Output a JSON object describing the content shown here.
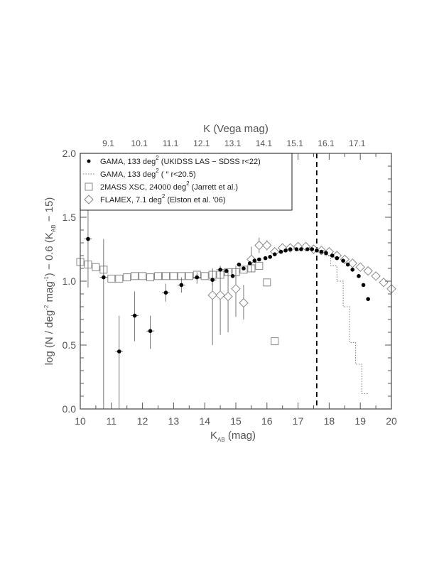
{
  "chart_data": {
    "type": "scatter",
    "xlabel": "K",
    "xlabel_sub": "AB",
    "xlabel_unit": "(mag)",
    "ylabel_parts": [
      "log (N / deg",
      "-2",
      " mag",
      "-1",
      ") − 0.6 (K",
      "AB",
      " − 15)"
    ],
    "top_xlabel": "K (Vega mag)",
    "xlim": [
      10,
      20
    ],
    "ylim": [
      0.0,
      2.0
    ],
    "x_ticks": [
      "10",
      "11",
      "12",
      "13",
      "14",
      "15",
      "16",
      "17",
      "18",
      "19",
      "20"
    ],
    "y_ticks": [
      "0.0",
      "0.5",
      "1.0",
      "1.5",
      "2.0"
    ],
    "top_ticks": {
      "positions_kab": [
        10.9,
        11.9,
        12.9,
        13.9,
        14.9,
        15.9,
        16.9,
        17.9,
        18.9
      ],
      "labels": [
        "9.1",
        "10.1",
        "11.1",
        "12.1",
        "13.1",
        "14.1",
        "15.1",
        "16.1",
        "17.1"
      ]
    },
    "vline_x": 17.6,
    "legend_position": "top-left",
    "legend": [
      {
        "marker": "filled-circle",
        "parts": [
          "GAMA, 133 deg",
          "2",
          " (UKIDSS LAS − SDSS r<22)"
        ]
      },
      {
        "marker": "dotted-line",
        "parts": [
          "GAMA, 133 deg",
          "2",
          " ( ″ r<20.5)"
        ]
      },
      {
        "marker": "open-square",
        "parts": [
          "2MASS XSC, 24000 deg",
          "2",
          " (Jarrett et al.)"
        ]
      },
      {
        "marker": "open-diamond",
        "parts": [
          "FLAMEX, 7.1 deg",
          "2",
          " (Elston et al. '06)"
        ]
      }
    ],
    "series": [
      {
        "name": "GAMA, 133 deg2 (UKIDSS LAS - SDSS r<22)",
        "marker": "filled-circle",
        "points": [
          {
            "x": 10.25,
            "y": 1.33,
            "ylo": 0.95,
            "yhi": 1.7
          },
          {
            "x": 10.75,
            "y": 1.03,
            "ylo": 0.0,
            "yhi": 1.33
          },
          {
            "x": 11.25,
            "y": 0.45,
            "ylo": 0.0,
            "yhi": 0.73
          },
          {
            "x": 11.75,
            "y": 0.73,
            "ylo": 0.53,
            "yhi": 0.92
          },
          {
            "x": 12.25,
            "y": 0.61,
            "ylo": 0.47,
            "yhi": 0.73
          },
          {
            "x": 12.75,
            "y": 0.91,
            "ylo": 0.84,
            "yhi": 0.98
          },
          {
            "x": 13.25,
            "y": 0.97,
            "ylo": 0.91,
            "yhi": 1.03
          },
          {
            "x": 13.75,
            "y": 1.03,
            "ylo": 0.98,
            "yhi": 1.07
          },
          {
            "x": 14.25,
            "y": 1.01,
            "ylo": 0.97,
            "yhi": 1.05
          },
          {
            "x": 14.5,
            "y": 1.09,
            "ylo": 1.05,
            "yhi": 1.12
          },
          {
            "x": 14.7,
            "y": 1.08
          },
          {
            "x": 14.9,
            "y": 1.04
          },
          {
            "x": 15.1,
            "y": 1.13
          },
          {
            "x": 15.25,
            "y": 1.1
          },
          {
            "x": 15.45,
            "y": 1.14
          },
          {
            "x": 15.6,
            "y": 1.16
          },
          {
            "x": 15.75,
            "y": 1.17
          },
          {
            "x": 15.95,
            "y": 1.18
          },
          {
            "x": 16.1,
            "y": 1.19
          },
          {
            "x": 16.25,
            "y": 1.21
          },
          {
            "x": 16.45,
            "y": 1.23
          },
          {
            "x": 16.6,
            "y": 1.24
          },
          {
            "x": 16.75,
            "y": 1.25
          },
          {
            "x": 16.95,
            "y": 1.25
          },
          {
            "x": 17.1,
            "y": 1.25
          },
          {
            "x": 17.3,
            "y": 1.25
          },
          {
            "x": 17.45,
            "y": 1.25
          },
          {
            "x": 17.6,
            "y": 1.24
          },
          {
            "x": 17.75,
            "y": 1.23
          },
          {
            "x": 17.9,
            "y": 1.22
          },
          {
            "x": 18.1,
            "y": 1.2
          },
          {
            "x": 18.25,
            "y": 1.18
          },
          {
            "x": 18.45,
            "y": 1.16
          },
          {
            "x": 18.6,
            "y": 1.13
          },
          {
            "x": 18.75,
            "y": 1.09
          },
          {
            "x": 18.95,
            "y": 1.04
          },
          {
            "x": 19.1,
            "y": 0.97
          },
          {
            "x": 19.25,
            "y": 0.86
          }
        ]
      },
      {
        "name": "GAMA, 133 deg2 ( \" r<20.5)",
        "marker": "dotted-step",
        "points": [
          {
            "x": 17.75,
            "y": 1.24
          },
          {
            "x": 17.95,
            "y": 1.2
          },
          {
            "x": 18.15,
            "y": 1.12
          },
          {
            "x": 18.35,
            "y": 1.0
          },
          {
            "x": 18.55,
            "y": 0.8
          },
          {
            "x": 18.75,
            "y": 0.52
          },
          {
            "x": 18.95,
            "y": 0.35
          },
          {
            "x": 19.15,
            "y": 0.12
          }
        ]
      },
      {
        "name": "2MASS XSC, 24000 deg2 (Jarrett et al.)",
        "marker": "open-square",
        "points": [
          {
            "x": 10.0,
            "y": 1.15
          },
          {
            "x": 10.25,
            "y": 1.13
          },
          {
            "x": 10.5,
            "y": 1.11
          },
          {
            "x": 10.75,
            "y": 1.09
          },
          {
            "x": 11.0,
            "y": 1.02
          },
          {
            "x": 11.25,
            "y": 1.02
          },
          {
            "x": 11.5,
            "y": 1.03
          },
          {
            "x": 11.75,
            "y": 1.04
          },
          {
            "x": 12.0,
            "y": 1.04
          },
          {
            "x": 12.25,
            "y": 1.03
          },
          {
            "x": 12.5,
            "y": 1.04
          },
          {
            "x": 12.75,
            "y": 1.04
          },
          {
            "x": 13.0,
            "y": 1.04
          },
          {
            "x": 13.25,
            "y": 1.04
          },
          {
            "x": 13.5,
            "y": 1.04
          },
          {
            "x": 13.75,
            "y": 1.05
          },
          {
            "x": 14.0,
            "y": 1.04
          },
          {
            "x": 14.25,
            "y": 1.05
          },
          {
            "x": 14.5,
            "y": 1.05
          },
          {
            "x": 14.75,
            "y": 1.07
          },
          {
            "x": 15.0,
            "y": 1.07
          },
          {
            "x": 15.25,
            "y": 1.09
          },
          {
            "x": 15.5,
            "y": 1.1
          },
          {
            "x": 15.75,
            "y": 1.12
          },
          {
            "x": 16.0,
            "y": 0.99
          },
          {
            "x": 16.25,
            "y": 0.53
          }
        ]
      },
      {
        "name": "FLAMEX, 7.1 deg2 (Elston et al. '06)",
        "marker": "open-diamond",
        "points": [
          {
            "x": 14.25,
            "y": 0.89,
            "ylo": 0.5,
            "yhi": 1.1
          },
          {
            "x": 14.5,
            "y": 0.89,
            "ylo": 0.58,
            "yhi": 1.1
          },
          {
            "x": 14.75,
            "y": 0.88,
            "ylo": 0.6,
            "yhi": 1.08
          },
          {
            "x": 15.0,
            "y": 0.94,
            "ylo": 0.72,
            "yhi": 1.12
          },
          {
            "x": 15.25,
            "y": 0.83,
            "ylo": 0.7,
            "yhi": 0.97
          },
          {
            "x": 15.5,
            "y": 1.17,
            "ylo": 1.07,
            "yhi": 1.27
          },
          {
            "x": 15.75,
            "y": 1.28,
            "ylo": 1.22,
            "yhi": 1.34
          },
          {
            "x": 16.0,
            "y": 1.28,
            "ylo": 1.24,
            "yhi": 1.32
          },
          {
            "x": 16.25,
            "y": 1.23
          },
          {
            "x": 16.5,
            "y": 1.26
          },
          {
            "x": 16.75,
            "y": 1.26
          },
          {
            "x": 17.0,
            "y": 1.27
          },
          {
            "x": 17.25,
            "y": 1.27
          },
          {
            "x": 17.5,
            "y": 1.25
          },
          {
            "x": 17.75,
            "y": 1.24
          },
          {
            "x": 18.0,
            "y": 1.23
          },
          {
            "x": 18.25,
            "y": 1.2
          },
          {
            "x": 18.5,
            "y": 1.17
          },
          {
            "x": 18.75,
            "y": 1.14
          },
          {
            "x": 19.0,
            "y": 1.11
          },
          {
            "x": 19.25,
            "y": 1.08
          },
          {
            "x": 19.5,
            "y": 1.04
          },
          {
            "x": 19.75,
            "y": 0.99
          },
          {
            "x": 20.0,
            "y": 0.94
          }
        ]
      }
    ]
  }
}
